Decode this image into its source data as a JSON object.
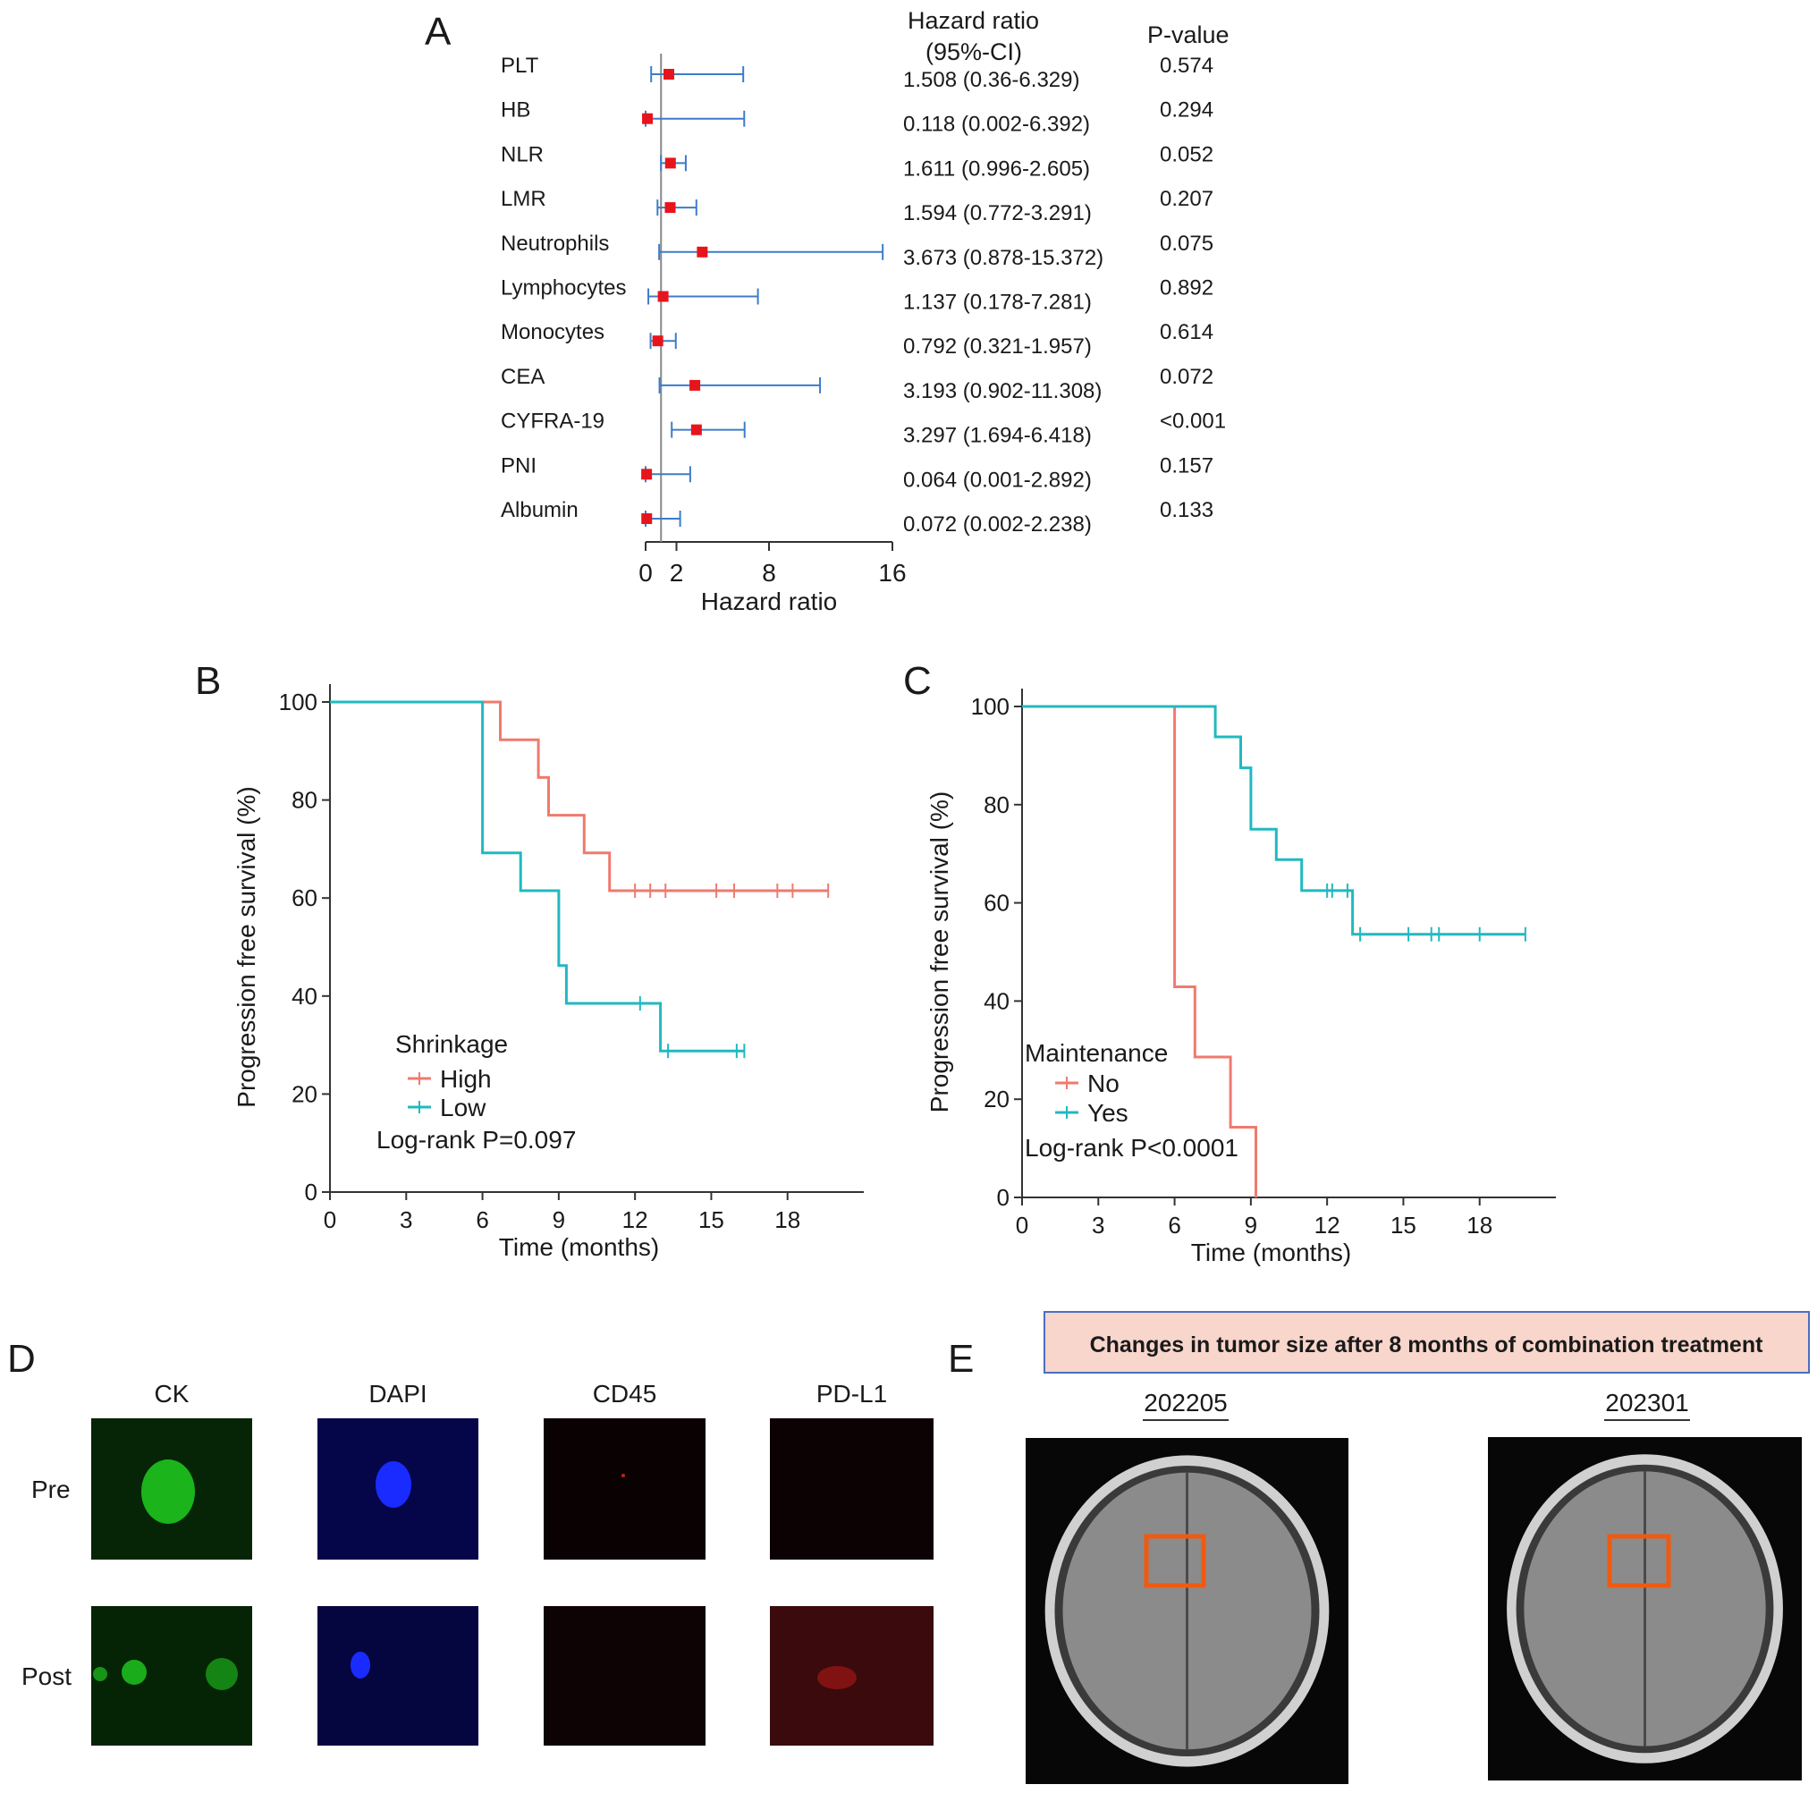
{
  "panel_a": {
    "letter": "A",
    "col_hr_title_1": "Hazard ratio",
    "col_hr_title_2": "(95%-CI)",
    "col_p_title": "P-value"
  },
  "panel_b": {
    "letter": "B"
  },
  "panel_c": {
    "letter": "C"
  },
  "panel_d": {
    "letter": "D",
    "columns": [
      "CK",
      "DAPI",
      "CD45",
      "PD-L1"
    ],
    "rows": [
      "Pre",
      "Post"
    ],
    "colors": [
      "#1ec41e",
      "#1a2bff",
      "#8a0b0b",
      "#9b1010"
    ]
  },
  "panel_e": {
    "letter": "E",
    "banner": "Changes in tumor size after 8 months of combination treatment",
    "banner_color": "#f8d6cc",
    "dates": [
      "202205",
      "202301"
    ],
    "box_color": "#f05a10"
  },
  "chart_data": [
    {
      "type": "forest",
      "rows": [
        {
          "label": "PLT",
          "hr": 1.508,
          "lo": 0.36,
          "hi": 6.329,
          "ci_text": "1.508 (0.36-6.329)",
          "p": "0.574"
        },
        {
          "label": "HB",
          "hr": 0.118,
          "lo": 0.002,
          "hi": 6.392,
          "ci_text": "0.118 (0.002-6.392)",
          "p": "0.294"
        },
        {
          "label": "NLR",
          "hr": 1.611,
          "lo": 0.996,
          "hi": 2.605,
          "ci_text": "1.611 (0.996-2.605)",
          "p": "0.052"
        },
        {
          "label": "LMR",
          "hr": 1.594,
          "lo": 0.772,
          "hi": 3.291,
          "ci_text": "1.594 (0.772-3.291)",
          "p": "0.207"
        },
        {
          "label": "Neutrophils",
          "hr": 3.673,
          "lo": 0.878,
          "hi": 15.372,
          "ci_text": "3.673 (0.878-15.372)",
          "p": "0.075"
        },
        {
          "label": "Lymphocytes",
          "hr": 1.137,
          "lo": 0.178,
          "hi": 7.281,
          "ci_text": "1.137 (0.178-7.281)",
          "p": "0.892"
        },
        {
          "label": "Monocytes",
          "hr": 0.792,
          "lo": 0.321,
          "hi": 1.957,
          "ci_text": "0.792 (0.321-1.957)",
          "p": "0.614"
        },
        {
          "label": "CEA",
          "hr": 3.193,
          "lo": 0.902,
          "hi": 11.308,
          "ci_text": "3.193 (0.902-11.308)",
          "p": "0.072"
        },
        {
          "label": "CYFRA-19",
          "hr": 3.297,
          "lo": 1.694,
          "hi": 6.418,
          "ci_text": "3.297 (1.694-6.418)",
          "p": "<0.001"
        },
        {
          "label": "PNI",
          "hr": 0.064,
          "lo": 0.001,
          "hi": 2.892,
          "ci_text": "0.064 (0.001-2.892)",
          "p": "0.157"
        },
        {
          "label": "Albumin",
          "hr": 0.072,
          "lo": 0.002,
          "hi": 2.238,
          "ci_text": "0.072 (0.002-2.238)",
          "p": "0.133"
        }
      ],
      "xticks": [
        0,
        2,
        8,
        16
      ],
      "xlim": [
        0,
        16
      ],
      "reference_line": 1,
      "xlabel": "Hazard ratio",
      "point_color": "#e8141c",
      "ci_color": "#3d7cc9"
    },
    {
      "type": "kaplan-meier",
      "xlabel": "Time (months)",
      "ylabel": "Progression free survival (%)",
      "xticks": [
        0,
        3,
        6,
        9,
        12,
        15,
        18
      ],
      "yticks": [
        0,
        20,
        40,
        60,
        80,
        100
      ],
      "xlim": [
        0,
        21
      ],
      "ylim": [
        0,
        100
      ],
      "legend_title": "Shrinkage",
      "legend_position": "bottom-left",
      "annotation": "Log-rank P=0.097",
      "series": [
        {
          "name": "High",
          "color": "#ef7a6f",
          "steps": [
            [
              0,
              100
            ],
            [
              6.7,
              100
            ],
            [
              6.7,
              92.3
            ],
            [
              8.2,
              92.3
            ],
            [
              8.2,
              84.6
            ],
            [
              8.6,
              84.6
            ],
            [
              8.6,
              76.9
            ],
            [
              10,
              76.9
            ],
            [
              10,
              69.2
            ],
            [
              11,
              69.2
            ],
            [
              11,
              61.5
            ],
            [
              19.6,
              61.5
            ]
          ],
          "censors": [
            [
              12,
              61.5
            ],
            [
              12.6,
              61.5
            ],
            [
              13.2,
              61.5
            ],
            [
              15.2,
              61.5
            ],
            [
              15.9,
              61.5
            ],
            [
              17.6,
              61.5
            ],
            [
              18.2,
              61.5
            ],
            [
              19.6,
              61.5
            ]
          ]
        },
        {
          "name": "Low",
          "color": "#21b9c0",
          "steps": [
            [
              0,
              100
            ],
            [
              6,
              100
            ],
            [
              6,
              69.2
            ],
            [
              7.5,
              69.2
            ],
            [
              7.5,
              61.5
            ],
            [
              9,
              61.5
            ],
            [
              9,
              46.2
            ],
            [
              9.3,
              46.2
            ],
            [
              9.3,
              38.5
            ],
            [
              13,
              38.5
            ],
            [
              13,
              28.8
            ],
            [
              16.3,
              28.8
            ]
          ],
          "censors": [
            [
              12.2,
              38.5
            ],
            [
              13.3,
              28.8
            ],
            [
              16,
              28.8
            ],
            [
              16.3,
              28.8
            ]
          ]
        }
      ]
    },
    {
      "type": "kaplan-meier",
      "xlabel": "Time (months)",
      "ylabel": "Progression free survival (%)",
      "xticks": [
        0,
        3,
        6,
        9,
        12,
        15,
        18
      ],
      "yticks": [
        0,
        20,
        40,
        60,
        80,
        100
      ],
      "xlim": [
        0,
        21
      ],
      "ylim": [
        0,
        100
      ],
      "legend_title": "Maintenance",
      "legend_position": "bottom-left",
      "annotation": "Log-rank  P<0.0001",
      "series": [
        {
          "name": "No",
          "color": "#ef7a6f",
          "steps": [
            [
              0,
              100
            ],
            [
              6,
              100
            ],
            [
              6,
              42.9
            ],
            [
              6.8,
              42.9
            ],
            [
              6.8,
              28.6
            ],
            [
              8.2,
              28.6
            ],
            [
              8.2,
              14.3
            ],
            [
              9.2,
              14.3
            ],
            [
              9.2,
              0
            ]
          ],
          "censors": []
        },
        {
          "name": "Yes",
          "color": "#21b9c0",
          "steps": [
            [
              0,
              100
            ],
            [
              7.6,
              100
            ],
            [
              7.6,
              93.8
            ],
            [
              8.6,
              93.8
            ],
            [
              8.6,
              87.5
            ],
            [
              9,
              87.5
            ],
            [
              9,
              75
            ],
            [
              10,
              75
            ],
            [
              10,
              68.8
            ],
            [
              11,
              68.8
            ],
            [
              11,
              62.5
            ],
            [
              13,
              62.5
            ],
            [
              13,
              53.6
            ],
            [
              19.8,
              53.6
            ]
          ],
          "censors": [
            [
              12,
              62.5
            ],
            [
              12.2,
              62.5
            ],
            [
              12.8,
              62.5
            ],
            [
              13.3,
              53.6
            ],
            [
              15.2,
              53.6
            ],
            [
              16.1,
              53.6
            ],
            [
              16.4,
              53.6
            ],
            [
              18,
              53.6
            ],
            [
              19.8,
              53.6
            ]
          ]
        }
      ]
    }
  ]
}
